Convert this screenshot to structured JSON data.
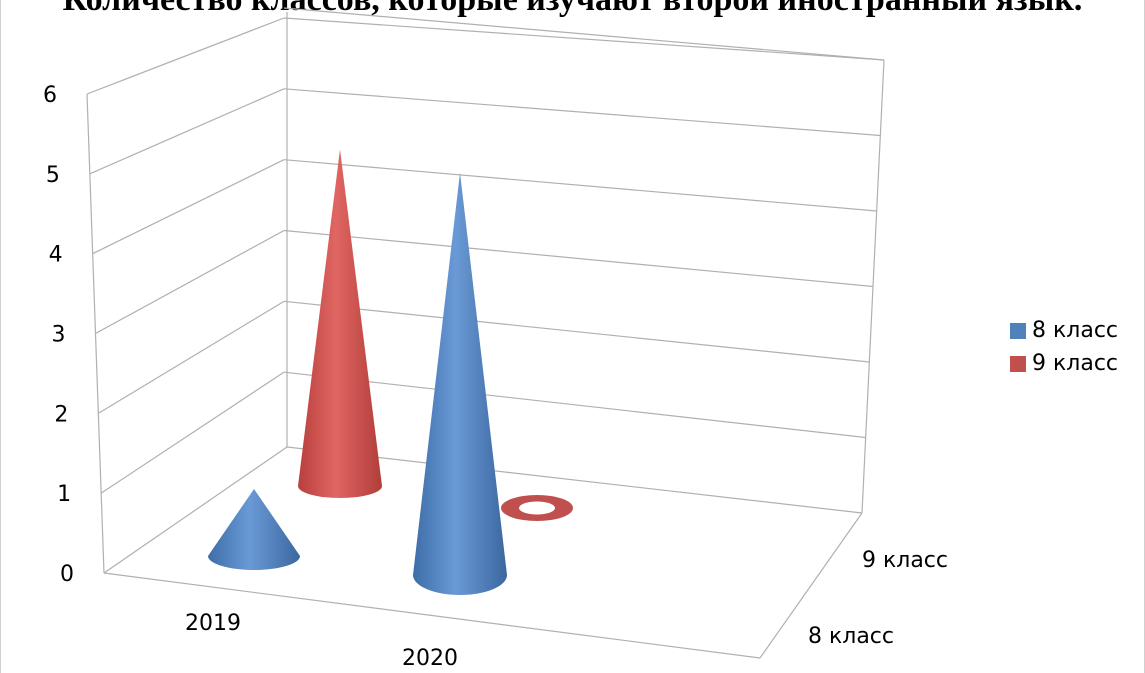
{
  "title": "Количество классов, которые изучают второй иностранный язык.",
  "chart_data": {
    "type": "bar",
    "subtype": "3d-cone",
    "categories": [
      "2019",
      "2020"
    ],
    "series": [
      {
        "name": "8 класс",
        "values": [
          1,
          6
        ],
        "color": "#4F81BD"
      },
      {
        "name": "9 класс",
        "values": [
          5,
          0
        ],
        "color": "#C0504D"
      }
    ],
    "depth_labels": [
      "8 класс",
      "9 класс"
    ],
    "y_ticks": [
      "0",
      "1",
      "2",
      "3",
      "4",
      "5",
      "6"
    ],
    "ylim": [
      0,
      6
    ],
    "grid": true,
    "legend_position": "right"
  }
}
